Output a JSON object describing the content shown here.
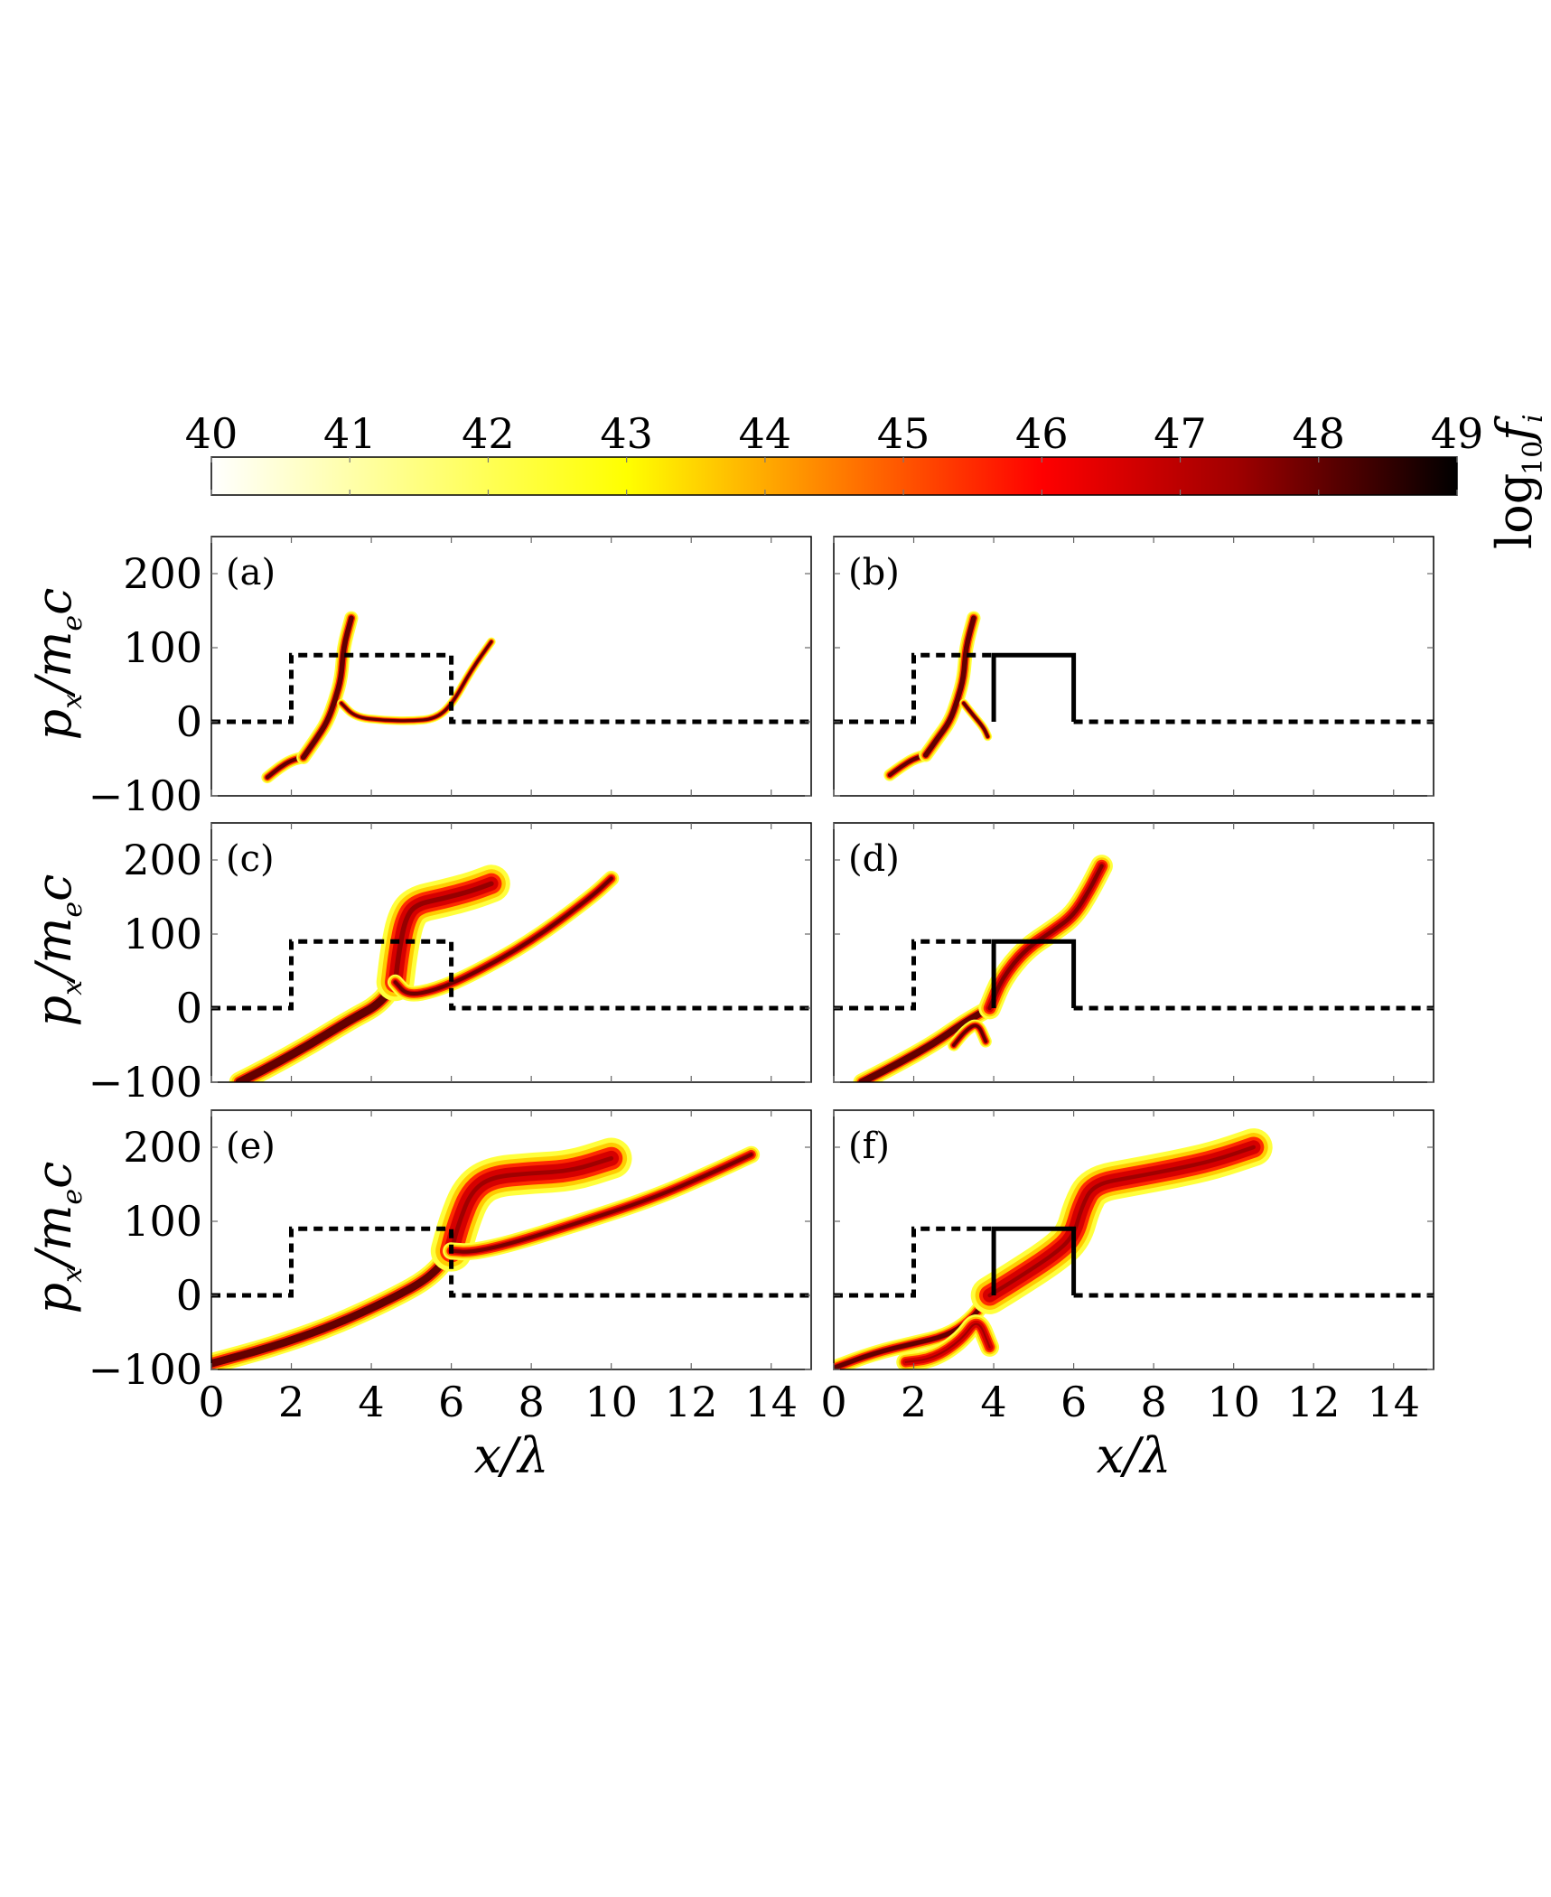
{
  "chart_data": {
    "type": "heatmap",
    "colorbar": {
      "label_main": "log",
      "label_sub": "10",
      "label_var": "f",
      "label_var_sub": "i",
      "min": 40,
      "max": 49,
      "ticks": [
        40,
        41,
        42,
        43,
        44,
        45,
        46,
        47,
        48,
        49
      ],
      "stops": [
        {
          "v": 40,
          "color": "#ffffff"
        },
        {
          "v": 43,
          "color": "#ffff00"
        },
        {
          "v": 46,
          "color": "#ff0000"
        },
        {
          "v": 47.4,
          "color": "#a00000"
        },
        {
          "v": 49,
          "color": "#000000"
        }
      ]
    },
    "axes": {
      "xlim": [
        0,
        15
      ],
      "ylim": [
        -100,
        250
      ],
      "xticks": [
        0,
        2,
        4,
        6,
        8,
        10,
        12,
        14
      ],
      "yticks": [
        -100,
        0,
        100,
        200
      ],
      "xlabel": {
        "var": "x",
        "sep": "/",
        "den": "λ"
      },
      "ylabel": {
        "p": "p",
        "sub": "x",
        "rest": "/m",
        "sub2": "e",
        "tail": "c"
      }
    },
    "panels": [
      {
        "label": "(a)",
        "dashed": [
          [
            0,
            0
          ],
          [
            2,
            0
          ],
          [
            2,
            90
          ],
          [
            6,
            90
          ],
          [
            6,
            0
          ],
          [
            15,
            0
          ]
        ],
        "solid": [],
        "bands": [
          {
            "pts": [
              [
                1.4,
                -75
              ],
              [
                1.7,
                -62
              ],
              [
                2.0,
                -52
              ],
              [
                2.3,
                -48
              ]
            ],
            "w": 7,
            "core": 0.6
          },
          {
            "pts": [
              [
                2.3,
                -48
              ],
              [
                2.6,
                -25
              ],
              [
                2.9,
                0
              ],
              [
                3.1,
                30
              ],
              [
                3.25,
                60
              ],
              [
                3.3,
                100
              ],
              [
                3.5,
                140
              ]
            ],
            "w": 8,
            "core": 0.7
          },
          {
            "pts": [
              [
                3.25,
                25
              ],
              [
                3.6,
                6
              ],
              [
                4.3,
                2
              ],
              [
                5.0,
                1
              ],
              [
                5.6,
                4
              ],
              [
                6.0,
                22
              ],
              [
                6.5,
                70
              ],
              [
                7.0,
                108
              ]
            ],
            "w": 5,
            "core": 0.6
          }
        ]
      },
      {
        "label": "(b)",
        "dashed": [
          [
            0,
            0
          ],
          [
            2,
            0
          ],
          [
            2,
            90
          ],
          [
            4,
            90
          ]
        ],
        "solid": [
          [
            4,
            0
          ],
          [
            4,
            90
          ],
          [
            6,
            90
          ],
          [
            6,
            0
          ]
        ],
        "dashed2": [
          [
            6,
            0
          ],
          [
            15,
            0
          ]
        ],
        "bands": [
          {
            "pts": [
              [
                1.4,
                -72
              ],
              [
                1.7,
                -60
              ],
              [
                2.0,
                -50
              ],
              [
                2.3,
                -45
              ]
            ],
            "w": 7,
            "core": 0.6
          },
          {
            "pts": [
              [
                2.3,
                -45
              ],
              [
                2.6,
                -22
              ],
              [
                2.9,
                0
              ],
              [
                3.1,
                30
              ],
              [
                3.25,
                60
              ],
              [
                3.3,
                100
              ],
              [
                3.5,
                140
              ]
            ],
            "w": 8,
            "core": 0.7
          },
          {
            "pts": [
              [
                3.25,
                25
              ],
              [
                3.5,
                8
              ],
              [
                3.75,
                -8
              ],
              [
                3.85,
                -20
              ]
            ],
            "w": 5,
            "core": 0.7
          }
        ]
      },
      {
        "label": "(c)",
        "dashed": [
          [
            0,
            0
          ],
          [
            2,
            0
          ],
          [
            2,
            90
          ],
          [
            6,
            90
          ],
          [
            6,
            0
          ],
          [
            15,
            0
          ]
        ],
        "solid": [],
        "bands": [
          {
            "pts": [
              [
                0.7,
                -100
              ],
              [
                1.5,
                -78
              ],
              [
                2.5,
                -48
              ],
              [
                3.5,
                -15
              ],
              [
                4.2,
                5
              ],
              [
                4.6,
                35
              ]
            ],
            "w": 12,
            "core": 0.75
          },
          {
            "pts": [
              [
                4.6,
                35
              ],
              [
                4.7,
                80
              ],
              [
                4.85,
                120
              ],
              [
                5.1,
                140
              ],
              [
                5.8,
                148
              ],
              [
                6.5,
                158
              ],
              [
                7.0,
                168
              ]
            ],
            "w": 22,
            "core": 0.25
          },
          {
            "pts": [
              [
                4.6,
                35
              ],
              [
                4.9,
                17
              ],
              [
                5.6,
                24
              ],
              [
                6.5,
                45
              ],
              [
                8.0,
                90
              ],
              [
                9.5,
                150
              ],
              [
                10.0,
                175
              ]
            ],
            "w": 9,
            "core": 0.45
          }
        ]
      },
      {
        "label": "(d)",
        "dashed": [
          [
            0,
            0
          ],
          [
            2,
            0
          ],
          [
            2,
            90
          ],
          [
            4,
            90
          ]
        ],
        "solid": [
          [
            4,
            0
          ],
          [
            4,
            90
          ],
          [
            6,
            90
          ],
          [
            6,
            0
          ]
        ],
        "dashed2": [
          [
            6,
            0
          ],
          [
            15,
            0
          ]
        ],
        "bands": [
          {
            "pts": [
              [
                0.7,
                -100
              ],
              [
                1.5,
                -78
              ],
              [
                2.5,
                -48
              ],
              [
                3.3,
                -18
              ],
              [
                3.9,
                0
              ]
            ],
            "w": 10,
            "core": 0.75
          },
          {
            "pts": [
              [
                3.0,
                -50
              ],
              [
                3.3,
                -30
              ],
              [
                3.6,
                -20
              ],
              [
                3.8,
                -45
              ]
            ],
            "w": 7,
            "core": 0.5
          },
          {
            "pts": [
              [
                3.9,
                0
              ],
              [
                4.2,
                40
              ],
              [
                4.8,
                80
              ],
              [
                5.5,
                105
              ],
              [
                6.0,
                125
              ],
              [
                6.4,
                160
              ],
              [
                6.7,
                192
              ]
            ],
            "w": 13,
            "core": 0.35
          }
        ]
      },
      {
        "label": "(e)",
        "dashed": [
          [
            0,
            0
          ],
          [
            2,
            0
          ],
          [
            2,
            90
          ],
          [
            6,
            90
          ],
          [
            6,
            0
          ],
          [
            15,
            0
          ]
        ],
        "solid": [],
        "bands": [
          {
            "pts": [
              [
                0,
                -92
              ],
              [
                1.5,
                -70
              ],
              [
                3.0,
                -42
              ],
              [
                4.5,
                -5
              ],
              [
                5.5,
                25
              ],
              [
                6.0,
                60
              ]
            ],
            "w": 12,
            "core": 0.7
          },
          {
            "pts": [
              [
                6.0,
                60
              ],
              [
                6.2,
                100
              ],
              [
                6.5,
                140
              ],
              [
                7.0,
                160
              ],
              [
                8.0,
                165
              ],
              [
                9.0,
                168
              ],
              [
                10.0,
                185
              ]
            ],
            "w": 24,
            "core": 0.2
          },
          {
            "pts": [
              [
                6.0,
                60
              ],
              [
                6.5,
                58
              ],
              [
                7.5,
                70
              ],
              [
                9.0,
                95
              ],
              [
                11.0,
                130
              ],
              [
                12.5,
                165
              ],
              [
                13.5,
                190
              ]
            ],
            "w": 10,
            "core": 0.4
          }
        ]
      },
      {
        "label": "(f)",
        "dashed": [
          [
            0,
            0
          ],
          [
            2,
            0
          ],
          [
            2,
            90
          ],
          [
            4,
            90
          ]
        ],
        "solid": [
          [
            4,
            0
          ],
          [
            4,
            90
          ],
          [
            6,
            90
          ],
          [
            6,
            0
          ]
        ],
        "dashed2": [
          [
            6,
            0
          ],
          [
            15,
            0
          ]
        ],
        "bands": [
          {
            "pts": [
              [
                0,
                -98
              ],
              [
                1.0,
                -78
              ],
              [
                2.0,
                -65
              ],
              [
                2.8,
                -55
              ],
              [
                3.4,
                -35
              ],
              [
                3.9,
                0
              ]
            ],
            "w": 9,
            "core": 0.55
          },
          {
            "pts": [
              [
                1.8,
                -90
              ],
              [
                2.5,
                -85
              ],
              [
                3.2,
                -60
              ],
              [
                3.6,
                -30
              ],
              [
                3.9,
                -70
              ]
            ],
            "w": 11,
            "core": 0.2
          },
          {
            "pts": [
              [
                3.9,
                0
              ],
              [
                4.5,
                20
              ],
              [
                5.5,
                55
              ],
              [
                6.0,
                80
              ],
              [
                6.2,
                120
              ],
              [
                6.5,
                150
              ],
              [
                7.5,
                160
              ],
              [
                8.5,
                170
              ],
              [
                9.5,
                182
              ],
              [
                10.5,
                200
              ]
            ],
            "w": 22,
            "core": 0.2
          }
        ]
      }
    ]
  }
}
